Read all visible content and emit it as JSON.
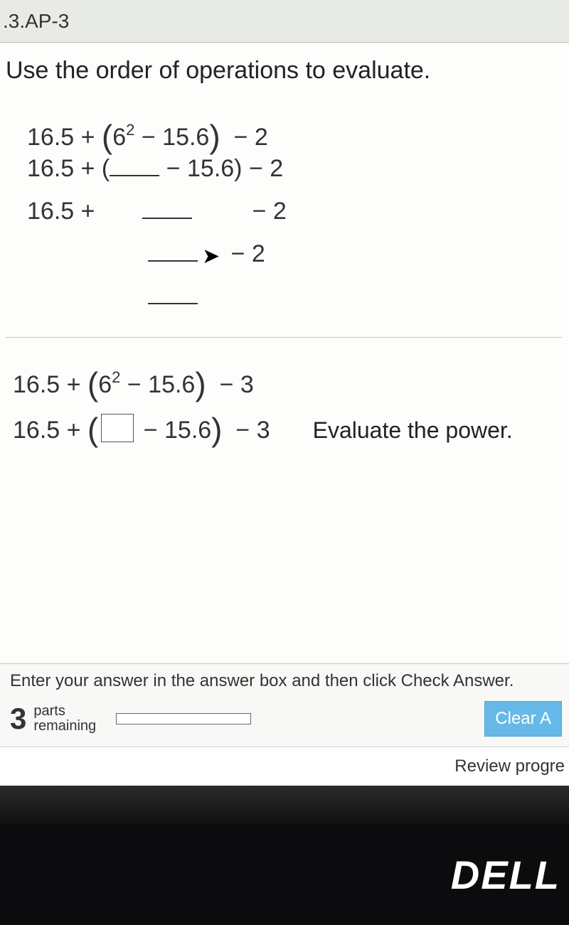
{
  "colors": {
    "page_bg": "#fdfdfb",
    "tab_bg": "#e8eae6",
    "text": "#333333",
    "button_bg": "#66b8e8",
    "button_text": "#ffffff",
    "bezel": "#0c0c0e"
  },
  "tab": {
    "label": ".3.AP-3"
  },
  "question": {
    "instruction": "Use the order of operations to evaluate.",
    "work": {
      "line1_a": "16.5 + ",
      "line1_expr_base": "6",
      "line1_expr_exp": "2",
      "line1_expr_rest": " − 15.6",
      "line1_tail": "  − 2",
      "line2_a": "16.5 + (",
      "line2_b": " − 15.6) − 2",
      "line3_a": "16.5 + ",
      "line3_tail": " − 2",
      "line4_tail": " − 2"
    },
    "answer": {
      "line1_a": "16.5 + ",
      "line1_base": "6",
      "line1_exp": "2",
      "line1_rest": " − 15.6",
      "line1_tail": "  − 3",
      "line2_a": "16.5 + ",
      "line2_rest": " − 15.6",
      "line2_tail": "  − 3",
      "hint": "Evaluate the power."
    }
  },
  "footer": {
    "hint": "Enter your answer in the answer box and then click Check Answer.",
    "parts_number": "3",
    "parts_label_top": "parts",
    "parts_label_bottom": "remaining",
    "clear_label": "Clear A"
  },
  "review": {
    "label": "Review progre"
  },
  "device": {
    "brand": "DELL"
  }
}
